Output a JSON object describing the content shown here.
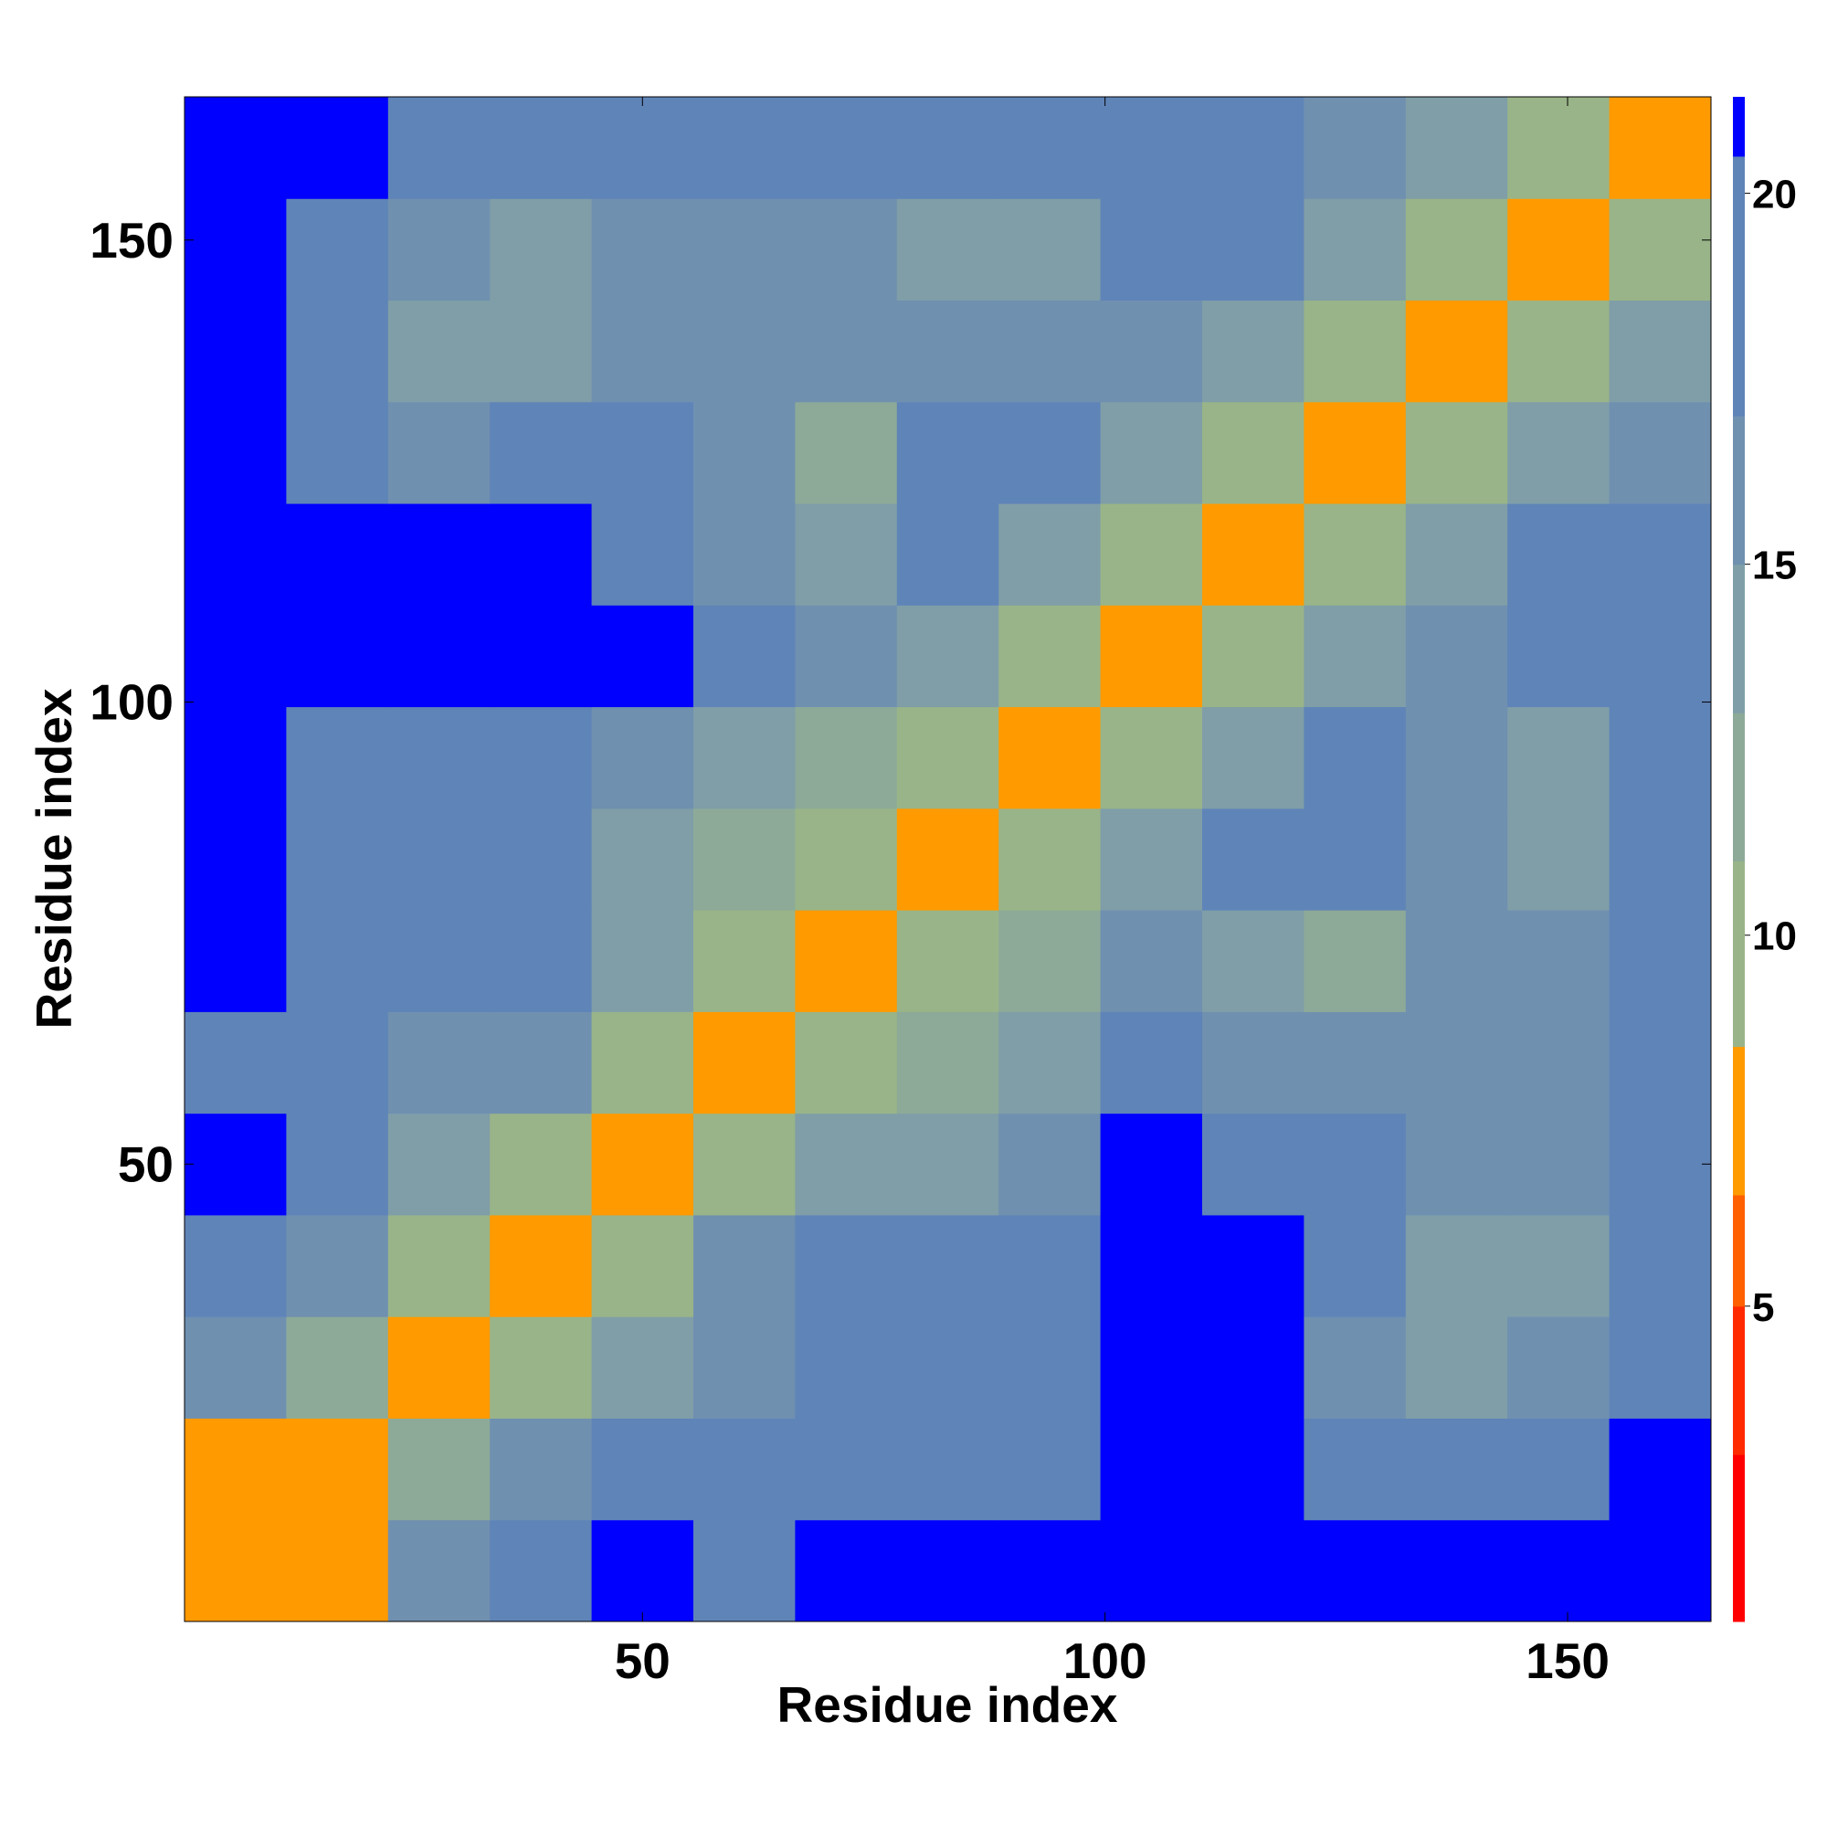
{
  "chart_data": {
    "type": "heatmap",
    "x_label": "Residue index",
    "y_label": "Residue index",
    "xbins": [
      0.5,
      11.5,
      22.5,
      33.5,
      44.5,
      55.5,
      66.5,
      77.5,
      88.5,
      99.5,
      110.5,
      121.5,
      132.5,
      143.5,
      154.5,
      165.5
    ],
    "ybins": [
      0.5,
      11.5,
      22.5,
      33.5,
      44.5,
      55.5,
      66.5,
      77.5,
      88.5,
      99.5,
      110.5,
      121.5,
      132.5,
      143.5,
      154.5,
      165.5
    ],
    "xlim": [
      0.5,
      165.5
    ],
    "ylim": [
      0.5,
      165.5
    ],
    "xticks": [
      50,
      100,
      150
    ],
    "yticks": [
      50,
      100,
      150
    ],
    "z": [
      [
        7,
        8,
        16,
        19,
        21,
        20,
        21,
        21,
        21,
        21,
        21,
        21,
        21,
        21,
        21
      ],
      [
        8,
        7,
        12,
        16,
        17,
        18,
        20,
        19,
        19,
        21,
        21,
        19,
        18,
        18,
        21
      ],
      [
        16,
        12,
        7,
        10,
        14,
        16,
        18,
        17,
        18,
        21,
        21,
        16,
        14,
        15,
        19
      ],
      [
        19,
        16,
        10,
        7,
        10,
        15,
        17,
        17,
        18,
        21,
        21,
        17,
        14,
        13,
        17
      ],
      [
        21,
        17,
        14,
        10,
        7,
        10,
        14,
        13,
        16,
        21,
        20,
        18,
        16,
        15,
        17
      ],
      [
        20,
        18,
        16,
        15,
        10,
        7,
        9,
        12,
        14,
        19,
        16,
        15,
        15,
        15,
        17
      ],
      [
        21,
        20,
        18,
        17,
        14,
        9,
        7,
        9,
        11,
        15,
        14,
        11,
        16,
        16,
        18
      ],
      [
        21,
        19,
        17,
        17,
        13,
        12,
        9,
        7,
        9,
        14,
        19,
        20,
        15,
        14,
        17
      ],
      [
        21,
        19,
        18,
        18,
        16,
        14,
        11,
        9,
        7,
        9,
        14,
        17,
        15,
        14,
        17
      ],
      [
        21,
        21,
        21,
        21,
        21,
        19,
        15,
        14,
        9,
        7,
        10,
        14,
        16,
        18,
        20
      ],
      [
        21,
        21,
        21,
        21,
        20,
        16,
        14,
        19,
        14,
        10,
        7,
        10,
        13,
        17,
        19
      ],
      [
        21,
        19,
        16,
        17,
        18,
        15,
        11,
        20,
        17,
        14,
        10,
        7,
        10,
        13,
        16
      ],
      [
        21,
        18,
        14,
        14,
        16,
        15,
        16,
        15,
        15,
        16,
        13,
        10,
        7,
        10,
        13
      ],
      [
        21,
        18,
        15,
        13,
        15,
        15,
        16,
        14,
        14,
        18,
        17,
        13,
        10,
        7,
        10
      ],
      [
        21,
        21,
        19,
        17,
        17,
        17,
        18,
        17,
        17,
        20,
        19,
        16,
        13,
        10,
        7
      ]
    ],
    "zlim": [
      0.75,
      21.3
    ],
    "zticks": [
      5,
      10,
      15,
      20
    ],
    "zbins": [
      0.75,
      3,
      5,
      6.5,
      8.5,
      11,
      13,
      15,
      17,
      20.5,
      21.3
    ],
    "zcolors": [
      "#ff0000",
      "#ff2a00",
      "#ff6000",
      "#ff9a00",
      "#99b488",
      "#8daa98",
      "#7f9ea8",
      "#7090b0",
      "#5f84b8",
      "#0000ff"
    ]
  }
}
